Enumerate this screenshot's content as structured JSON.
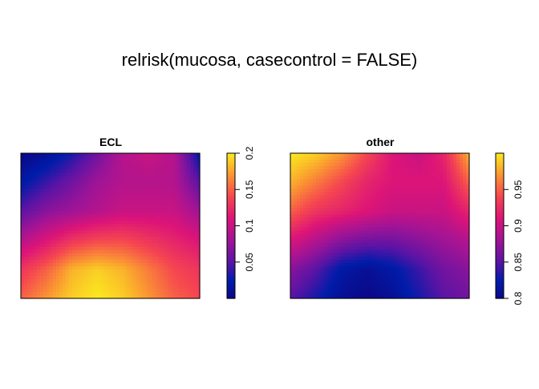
{
  "title": "relrisk(mucosa, casecontrol = FALSE)",
  "chart_data": [
    {
      "type": "heatmap",
      "title": "ECL",
      "colorbar_ticks": [
        "0.05",
        "0.1",
        "0.15",
        "0.2"
      ],
      "colorbar_tick_values": [
        0.05,
        0.1,
        0.15,
        0.2
      ],
      "zlim": [
        0.0,
        0.2
      ],
      "grid_rows": [
        [
          0.0,
          0.01,
          0.03,
          0.06,
          0.09,
          0.1,
          0.09,
          0.02
        ],
        [
          0.02,
          0.04,
          0.06,
          0.08,
          0.09,
          0.09,
          0.09,
          0.05
        ],
        [
          0.05,
          0.07,
          0.08,
          0.09,
          0.1,
          0.1,
          0.1,
          0.08
        ],
        [
          0.09,
          0.11,
          0.13,
          0.14,
          0.14,
          0.13,
          0.12,
          0.11
        ],
        [
          0.13,
          0.15,
          0.18,
          0.19,
          0.18,
          0.16,
          0.14,
          0.13
        ],
        [
          0.15,
          0.17,
          0.19,
          0.2,
          0.19,
          0.17,
          0.15,
          0.14
        ]
      ]
    },
    {
      "type": "heatmap",
      "title": "other",
      "colorbar_ticks": [
        "0.8",
        "0.85",
        "0.9",
        "0.95"
      ],
      "colorbar_tick_values": [
        0.8,
        0.85,
        0.9,
        0.95
      ],
      "zlim": [
        0.8,
        1.0
      ],
      "grid_rows": [
        [
          1.0,
          0.99,
          0.97,
          0.94,
          0.91,
          0.9,
          0.92,
          0.98
        ],
        [
          0.98,
          0.96,
          0.94,
          0.92,
          0.91,
          0.91,
          0.91,
          0.95
        ],
        [
          0.95,
          0.93,
          0.92,
          0.91,
          0.9,
          0.9,
          0.9,
          0.92
        ],
        [
          0.91,
          0.89,
          0.87,
          0.86,
          0.86,
          0.87,
          0.88,
          0.89
        ],
        [
          0.87,
          0.85,
          0.82,
          0.81,
          0.82,
          0.84,
          0.86,
          0.87
        ],
        [
          0.85,
          0.83,
          0.81,
          0.8,
          0.81,
          0.83,
          0.85,
          0.86
        ]
      ]
    }
  ]
}
